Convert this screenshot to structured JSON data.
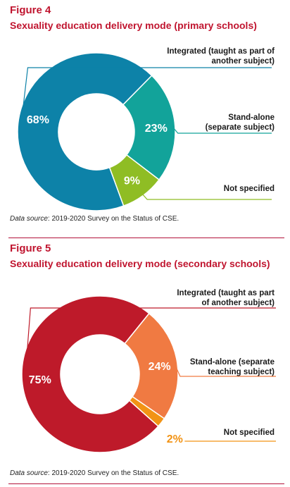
{
  "theme": {
    "fig4_heading_color": "#c0152f",
    "fig5_heading_color": "#c0152f",
    "rule_color": "#b3123a"
  },
  "chart_data": [
    {
      "type": "pie",
      "figure_label": "Figure 4",
      "title": "Sexuality education delivery mode (primary schools)",
      "hole": true,
      "slices": [
        {
          "label": "Integrated (taught as part of another subject)",
          "label_lines": [
            "Integrated (taught as part of",
            "another subject)"
          ],
          "value": 68,
          "display": "68%",
          "color": "#0d82a8"
        },
        {
          "label": "Stand-alone (separate subject)",
          "label_lines": [
            "Stand-alone",
            "(separate subject)"
          ],
          "value": 23,
          "display": "23%",
          "color": "#12a39a"
        },
        {
          "label": "Not specified",
          "label_lines": [
            "Not specified"
          ],
          "value": 9,
          "display": "9%",
          "color": "#8fbd24"
        }
      ],
      "source_italic": "Data source",
      "source_text": ": 2019-2020 Survey on the Status of CSE."
    },
    {
      "type": "pie",
      "figure_label": "Figure 5",
      "title": "Sexuality education delivery mode (secondary schools)",
      "hole": true,
      "slices": [
        {
          "label": "Integrated (taught as part of another subject)",
          "label_lines": [
            "Integrated (taught as part",
            "of another subject)"
          ],
          "value": 75,
          "display": "75%",
          "color": "#be1a2a"
        },
        {
          "label": "Stand-alone (separate teaching subject)",
          "label_lines": [
            "Stand-alone (separate",
            "teaching subject)"
          ],
          "value": 24,
          "display": "24%",
          "color": "#f07a42"
        },
        {
          "label": "Not specified",
          "label_lines": [
            "Not specified"
          ],
          "value": 2,
          "display": "2%",
          "color": "#f29315"
        }
      ],
      "source_italic": "Data source",
      "source_text": ": 2019-2020 Survey on the Status of CSE."
    }
  ]
}
